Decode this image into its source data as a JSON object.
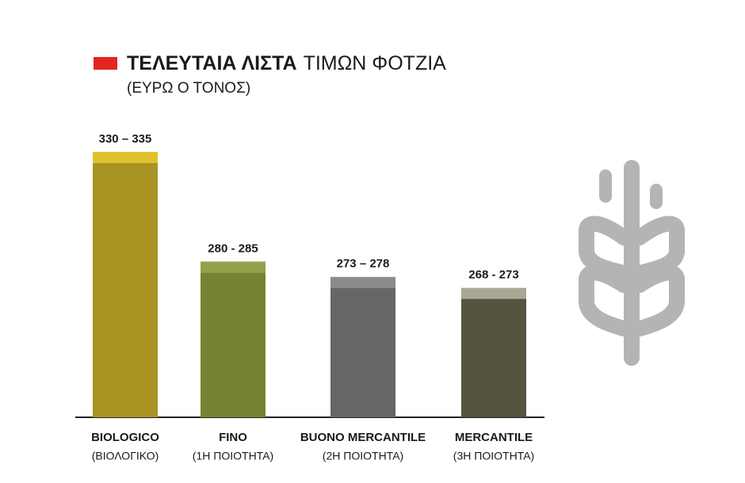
{
  "chart_data": {
    "type": "range_bar",
    "title": [
      "ΤΕΛΕΥΤΑΙΑ ΛΙΣΤΑ",
      "ΤΙΜΩΝ ΦΟΤΖΙΑ"
    ],
    "subtitle": "(ΕΥΡΩ Ο ΤΟΝΟΣ)",
    "categories": [
      "BIOLOGICO",
      "FINO",
      "BUONO MERCANTILE",
      "MERCANTILE"
    ],
    "category_notes": [
      "(ΒΙΟΛΟΓΙΚΟ)",
      "(1Η ΠΟΙΟΤΗΤΑ)",
      "(2Η ΠΟΙΟΤΗΤΑ)",
      "(3Η ΠΟΙΟΤΗΤΑ)"
    ],
    "low": [
      330,
      280,
      273,
      268
    ],
    "high": [
      335,
      285,
      278,
      273
    ],
    "value_labels": [
      "330 – 335",
      "280 - 285",
      "273 – 278",
      "268 - 273"
    ],
    "low_colors": [
      "#a99322",
      "#748431",
      "#666666",
      "#56533f"
    ],
    "high_colors": [
      "#e1c22a",
      "#94a04c",
      "#8b8b8b",
      "#aaa695"
    ],
    "ylim": [
      214,
      340
    ]
  }
}
